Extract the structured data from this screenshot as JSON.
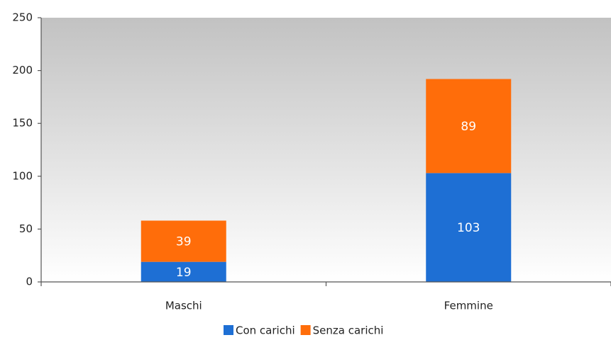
{
  "chart_data": {
    "type": "stacked_bar",
    "categories": [
      "Maschi",
      "Femmine"
    ],
    "series": [
      {
        "name": "Con carichi",
        "color": "#1e6fd4",
        "values": [
          19,
          103
        ]
      },
      {
        "name": "Senza carichi",
        "color": "#ff6d0a",
        "values": [
          39,
          89
        ]
      }
    ],
    "ylim": [
      0,
      250
    ],
    "yticks": [
      0,
      50,
      100,
      150,
      200,
      250
    ],
    "legend": "bottom"
  }
}
